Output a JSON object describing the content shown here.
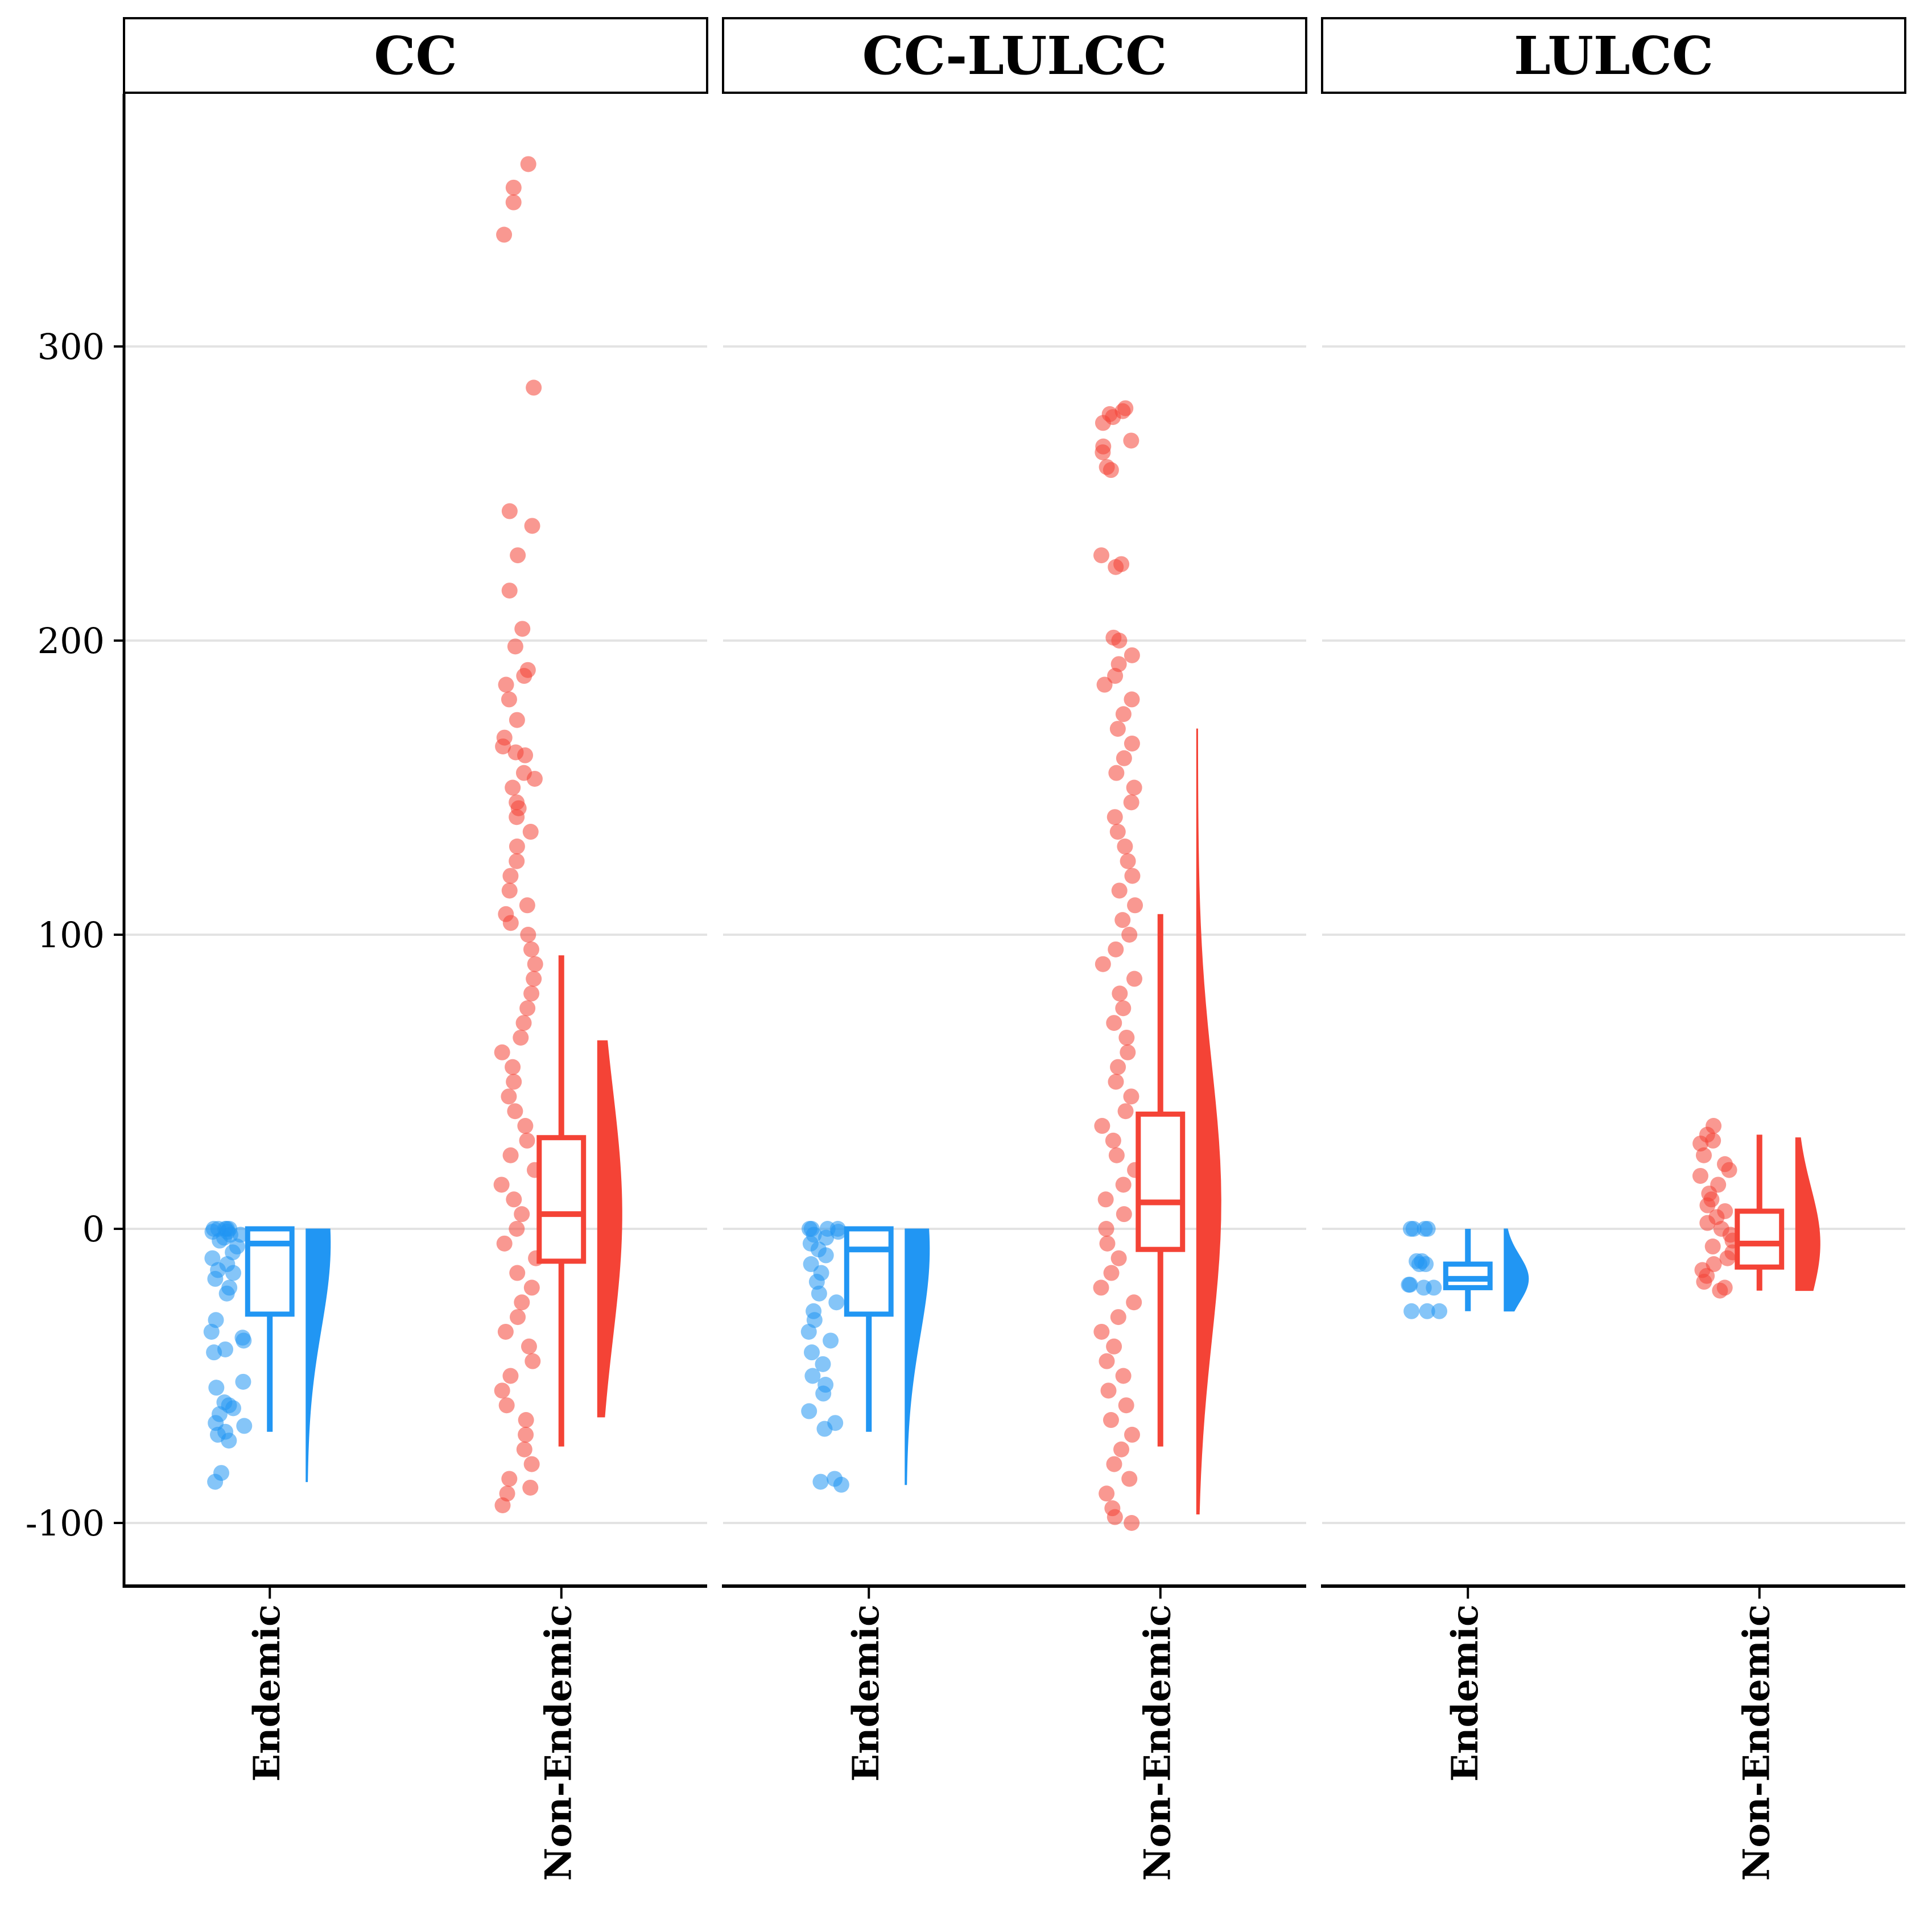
{
  "chart_data": {
    "type": "raincloud",
    "title": "",
    "xlabel": "",
    "ylabel": "",
    "ylim": [
      -122,
      385
    ],
    "yticks": [
      -100,
      0,
      100,
      200,
      300
    ],
    "ytick_labels": [
      "-100",
      "0",
      "100",
      "200",
      "300"
    ],
    "categories": [
      "Endemic",
      "Non-Endemic"
    ],
    "colors": {
      "Endemic": "#2196F3",
      "Non-Endemic": "#F44336"
    },
    "grid": "horizontal",
    "legend": "none",
    "panels": [
      {
        "name": "CC",
        "groups": [
          {
            "category": "Endemic",
            "box": {
              "whisker_low": -69,
              "q1": -29,
              "median": -5,
              "q3": 0,
              "whisker_high": 0
            },
            "density_extent": [
              -86,
              0
            ],
            "points": [
              0,
              0,
              0,
              0,
              0,
              -1,
              -1,
              -2,
              -2,
              -3,
              -4,
              -6,
              -8,
              -10,
              -12,
              -14,
              -15,
              -17,
              -20,
              -22,
              -31,
              -35,
              -37,
              -38,
              -42,
              -41,
              -52,
              -54,
              -59,
              -60,
              -61,
              -63,
              -66,
              -67,
              -69,
              -70,
              -72,
              -83,
              -86
            ]
          },
          {
            "category": "Non-Endemic",
            "box": {
              "whisker_low": -74,
              "q1": -11,
              "median": 5,
              "q3": 31,
              "whisker_high": 93
            },
            "density_extent": [
              -64,
              64
            ],
            "points": [
              362,
              354,
              349,
              338,
              286,
              244,
              239,
              229,
              217,
              204,
              198,
              190,
              188,
              185,
              180,
              173,
              167,
              164,
              162,
              161,
              155,
              153,
              150,
              145,
              143,
              140,
              135,
              130,
              125,
              120,
              115,
              110,
              107,
              104,
              100,
              95,
              90,
              85,
              80,
              75,
              70,
              65,
              60,
              55,
              50,
              45,
              40,
              35,
              30,
              25,
              20,
              15,
              10,
              5,
              0,
              -5,
              -10,
              -15,
              -20,
              -25,
              -30,
              -35,
              -40,
              -45,
              -50,
              -55,
              -60,
              -65,
              -70,
              -75,
              -80,
              -85,
              -88,
              -90,
              -94
            ]
          }
        ]
      },
      {
        "name": "CC-LULCC",
        "groups": [
          {
            "category": "Endemic",
            "box": {
              "whisker_low": -69,
              "q1": -29,
              "median": -7,
              "q3": 0,
              "whisker_high": 0
            },
            "density_extent": [
              -87,
              0
            ],
            "points": [
              0,
              0,
              0,
              0,
              -1,
              -2,
              -3,
              -5,
              -7,
              -9,
              -12,
              -15,
              -18,
              -22,
              -25,
              -28,
              -31,
              -35,
              -38,
              -42,
              -46,
              -50,
              -53,
              -56,
              -62,
              -66,
              -68,
              -85,
              -86,
              -87
            ]
          },
          {
            "category": "Non-Endemic",
            "box": {
              "whisker_low": -74,
              "q1": -7,
              "median": 9,
              "q3": 39,
              "whisker_high": 107
            },
            "density_extent": [
              -97,
              170
            ],
            "points": [
              279,
              278,
              277,
              276,
              274,
              268,
              266,
              264,
              259,
              258,
              229,
              226,
              225,
              201,
              200,
              195,
              192,
              188,
              185,
              180,
              175,
              170,
              165,
              160,
              155,
              150,
              145,
              140,
              135,
              130,
              125,
              120,
              115,
              110,
              105,
              100,
              95,
              90,
              85,
              80,
              75,
              70,
              65,
              60,
              55,
              50,
              45,
              40,
              35,
              30,
              25,
              20,
              15,
              10,
              5,
              0,
              -5,
              -10,
              -15,
              -20,
              -25,
              -30,
              -35,
              -40,
              -45,
              -50,
              -55,
              -60,
              -65,
              -70,
              -75,
              -80,
              -85,
              -90,
              -95,
              -98,
              -100
            ]
          }
        ]
      },
      {
        "name": "LULCC",
        "groups": [
          {
            "category": "Endemic",
            "box": {
              "whisker_low": -28,
              "q1": -20,
              "median": -17,
              "q3": -12,
              "whisker_high": 0
            },
            "density_extent": [
              -28,
              0
            ],
            "points": [
              0,
              0,
              0,
              0,
              -11,
              -11,
              -12,
              -12,
              -19,
              -19,
              -20,
              -20,
              -28,
              -28,
              -28
            ]
          },
          {
            "category": "Non-Endemic",
            "box": {
              "whisker_low": -21,
              "q1": -13,
              "median": -5,
              "q3": 6,
              "whisker_high": 32
            },
            "density_extent": [
              -21,
              31
            ],
            "points": [
              35,
              32,
              30,
              29,
              25,
              22,
              20,
              18,
              15,
              12,
              10,
              8,
              6,
              4,
              2,
              0,
              -2,
              -4,
              -6,
              -8,
              -10,
              -12,
              -14,
              -16,
              -18,
              -20,
              -21
            ]
          }
        ]
      }
    ]
  }
}
